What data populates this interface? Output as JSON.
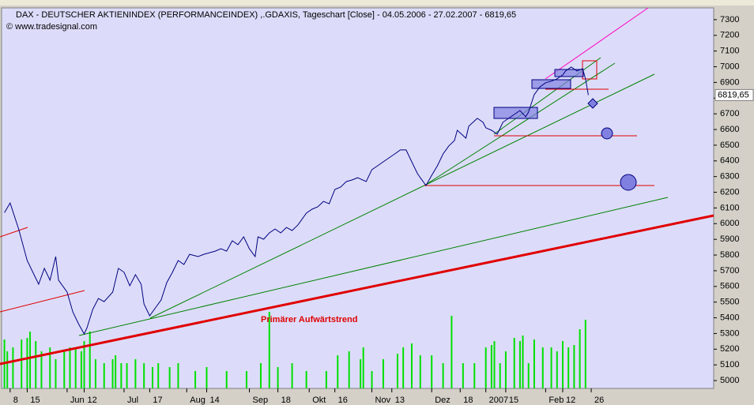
{
  "chart_data": {
    "type": "line",
    "title": "DAX  - DEUTSCHER AKTIENINDEX (PERFORMANCEINDEX) ,.GDAXIS, Tageschart [Close] - 04.05.2006 - 27.02.2007 - 6819,65",
    "subtitle": "© www.tradesignal.com",
    "annotation": "Primärer Aufwärtstrend",
    "last_value_label": "6819,65",
    "color": "#000080",
    "x": [
      0,
      2,
      5,
      8,
      10,
      12,
      14,
      16,
      18,
      19,
      22,
      24,
      26,
      28,
      29,
      31,
      33,
      35,
      38,
      40,
      42,
      44,
      46,
      48,
      49,
      51,
      53,
      55,
      57,
      59,
      61,
      63,
      65,
      68,
      70,
      72,
      74,
      76,
      78,
      80,
      82,
      84,
      86,
      88,
      89,
      91,
      93,
      95,
      97,
      99,
      101,
      103,
      106,
      108,
      110,
      112,
      114,
      116,
      118,
      120,
      122,
      124,
      127,
      129,
      131,
      133,
      135,
      137,
      139,
      141,
      143,
      145,
      146,
      148,
      150,
      152,
      154,
      156,
      158,
      159,
      162,
      163,
      166,
      168,
      169,
      171,
      173,
      175,
      177,
      179,
      181,
      183,
      184,
      186,
      188,
      190,
      192,
      194,
      196,
      197,
      199,
      201,
      203,
      204,
      205
    ],
    "values": [
      6070,
      6132,
      5966,
      5765,
      5690,
      5614,
      5715,
      5640,
      5790,
      5640,
      5564,
      5438,
      5362,
      5297,
      5337,
      5453,
      5523,
      5503,
      5564,
      5715,
      5690,
      5604,
      5675,
      5614,
      5488,
      5413,
      5463,
      5513,
      5624,
      5690,
      5765,
      5740,
      5805,
      5790,
      5805,
      5815,
      5825,
      5840,
      5825,
      5891,
      5866,
      5916,
      5840,
      5790,
      5916,
      5901,
      5941,
      5966,
      5941,
      5976,
      5956,
      5991,
      6067,
      6092,
      6107,
      6142,
      6127,
      6218,
      6233,
      6268,
      6278,
      6293,
      6268,
      6344,
      6369,
      6394,
      6419,
      6444,
      6470,
      6470,
      6394,
      6319,
      6293,
      6243,
      6308,
      6369,
      6444,
      6495,
      6530,
      6595,
      6545,
      6621,
      6671,
      6646,
      6611,
      6595,
      6570,
      6646,
      6671,
      6696,
      6721,
      6681,
      6711,
      6822,
      6872,
      6898,
      6908,
      6923,
      6948,
      6973,
      6998,
      6973,
      6988,
      6923,
      6819.65
    ],
    "volume": {
      "color": "#00e000",
      "ylim": [
        0,
        100
      ],
      "x": [
        0,
        1,
        3,
        6,
        8,
        9,
        11,
        13,
        16,
        18,
        21,
        23,
        25,
        27,
        28,
        30,
        32,
        35,
        38,
        39,
        41,
        43,
        46,
        49,
        52,
        54,
        58,
        61,
        67,
        71,
        78,
        85,
        90,
        93,
        96,
        101,
        106,
        113,
        117,
        121,
        125,
        126,
        129,
        133,
        138,
        140,
        143,
        146,
        150,
        154,
        157,
        161,
        165,
        169,
        171,
        172,
        174,
        176,
        179,
        181,
        182,
        184,
        186,
        189,
        192,
        194,
        196,
        198,
        200,
        202,
        204
      ],
      "values": [
        62,
        47,
        52,
        62,
        64,
        72,
        60,
        47,
        52,
        37,
        47,
        52,
        52,
        47,
        60,
        72,
        37,
        32,
        37,
        42,
        32,
        32,
        37,
        32,
        27,
        32,
        27,
        32,
        22,
        27,
        22,
        22,
        32,
        97,
        27,
        32,
        22,
        22,
        42,
        47,
        37,
        52,
        22,
        37,
        44,
        52,
        57,
        42,
        42,
        32,
        92,
        32,
        32,
        52,
        55,
        60,
        32,
        47,
        64,
        60,
        67,
        32,
        62,
        52,
        52,
        47,
        60,
        52,
        55,
        75,
        87
      ]
    },
    "xlim": [
      -1,
      249
    ],
    "ylim": [
      4950,
      7375
    ],
    "xticks": [
      {
        "value": 2,
        "label": "8"
      },
      {
        "value": 8,
        "label": "15"
      },
      {
        "value": 22,
        "label": "Jun"
      },
      {
        "value": 28,
        "label": "12"
      },
      {
        "value": 42,
        "label": "Jul"
      },
      {
        "value": 51,
        "label": "17"
      },
      {
        "value": 64,
        "label": "Aug"
      },
      {
        "value": 71,
        "label": "14"
      },
      {
        "value": 86,
        "label": "Sep"
      },
      {
        "value": 96,
        "label": "18"
      },
      {
        "value": 107,
        "label": "Okt"
      },
      {
        "value": 116,
        "label": "16"
      },
      {
        "value": 129,
        "label": "Nov"
      },
      {
        "value": 136,
        "label": "13"
      },
      {
        "value": 150,
        "label": "Dez"
      },
      {
        "value": 160,
        "label": "18"
      },
      {
        "value": 169,
        "label": "2007"
      },
      {
        "value": 176,
        "label": "15"
      },
      {
        "value": 190,
        "label": "Feb"
      },
      {
        "value": 196,
        "label": "12"
      },
      {
        "value": 206,
        "label": "26"
      }
    ],
    "yticks": [
      5000,
      5100,
      5200,
      5300,
      5400,
      5500,
      5600,
      5700,
      5800,
      5900,
      6000,
      6100,
      6200,
      6300,
      6400,
      6500,
      6600,
      6700,
      6800,
      6900,
      7000,
      7100,
      7200,
      7300
    ]
  }
}
